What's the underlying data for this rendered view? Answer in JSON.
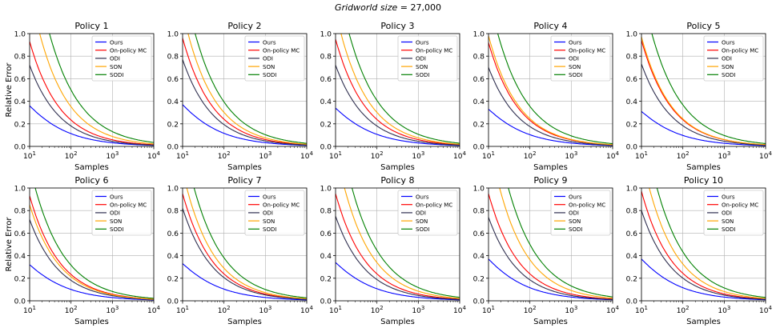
{
  "suptitle": {
    "italic": "Gridworld size",
    "rest": " = 27,000"
  },
  "common": {
    "xlabel": "Samples",
    "ylabel": "Relative Error",
    "xscale": "log",
    "xlim": [
      10,
      10000
    ],
    "ylim": [
      0,
      1.0
    ],
    "yticks": [
      "0.0",
      "0.2",
      "0.4",
      "0.6",
      "0.8",
      "1.0"
    ],
    "xtick_exponents": [
      "1",
      "2",
      "3",
      "4"
    ],
    "grid": true,
    "legend_loc": "top-right"
  },
  "series_styles": [
    {
      "name": "Ours",
      "color": "#0000ff"
    },
    {
      "name": "On-policy MC",
      "color": "#ff0000"
    },
    {
      "name": "ODI",
      "color": "#2f2f4f"
    },
    {
      "name": "SON",
      "color": "#ffa500"
    },
    {
      "name": "SODI",
      "color": "#008000"
    }
  ],
  "chart_data": [
    {
      "type": "line",
      "title": "Policy 1",
      "series": [
        {
          "name": "Ours",
          "start": 0.36,
          "k": 0.8,
          "alpha": 0.55
        },
        {
          "name": "On-policy MC",
          "start": 0.93,
          "k": 1.0,
          "alpha": 0.6
        },
        {
          "name": "ODI",
          "start": 0.72,
          "k": 1.0,
          "alpha": 0.6
        },
        {
          "name": "SON",
          "start": 1.4,
          "k": 1.0,
          "alpha": 0.6
        },
        {
          "name": "SODI",
          "start": 1.9,
          "k": 1.0,
          "alpha": 0.58
        }
      ]
    },
    {
      "type": "line",
      "title": "Policy 2",
      "series": [
        {
          "name": "Ours",
          "start": 0.37,
          "k": 0.8,
          "alpha": 0.55
        },
        {
          "name": "On-policy MC",
          "start": 0.96,
          "k": 1.0,
          "alpha": 0.6
        },
        {
          "name": "ODI",
          "start": 0.77,
          "k": 1.0,
          "alpha": 0.6
        },
        {
          "name": "SON",
          "start": 1.2,
          "k": 1.0,
          "alpha": 0.6
        },
        {
          "name": "SODI",
          "start": 1.5,
          "k": 1.0,
          "alpha": 0.58
        }
      ]
    },
    {
      "type": "line",
      "title": "Policy 3",
      "series": [
        {
          "name": "Ours",
          "start": 0.34,
          "k": 0.8,
          "alpha": 0.55
        },
        {
          "name": "On-policy MC",
          "start": 0.95,
          "k": 1.0,
          "alpha": 0.6
        },
        {
          "name": "ODI",
          "start": 0.72,
          "k": 1.0,
          "alpha": 0.6
        },
        {
          "name": "SON",
          "start": 1.2,
          "k": 1.0,
          "alpha": 0.6
        },
        {
          "name": "SODI",
          "start": 1.55,
          "k": 1.0,
          "alpha": 0.58
        }
      ]
    },
    {
      "type": "line",
      "title": "Policy 4",
      "series": [
        {
          "name": "Ours",
          "start": 0.33,
          "k": 0.8,
          "alpha": 0.55
        },
        {
          "name": "On-policy MC",
          "start": 0.92,
          "k": 1.0,
          "alpha": 0.6
        },
        {
          "name": "ODI",
          "start": 0.7,
          "k": 1.0,
          "alpha": 0.6
        },
        {
          "name": "SON",
          "start": 0.98,
          "k": 1.0,
          "alpha": 0.6
        },
        {
          "name": "SODI",
          "start": 1.35,
          "k": 1.0,
          "alpha": 0.58
        }
      ]
    },
    {
      "type": "line",
      "title": "Policy 5",
      "series": [
        {
          "name": "Ours",
          "start": 0.31,
          "k": 0.8,
          "alpha": 0.55
        },
        {
          "name": "On-policy MC",
          "start": 0.94,
          "k": 1.0,
          "alpha": 0.6
        },
        {
          "name": "ODI",
          "start": 0.73,
          "k": 1.0,
          "alpha": 0.6
        },
        {
          "name": "SON",
          "start": 0.97,
          "k": 1.0,
          "alpha": 0.6
        },
        {
          "name": "SODI",
          "start": 1.4,
          "k": 1.0,
          "alpha": 0.58
        }
      ]
    },
    {
      "type": "line",
      "title": "Policy 6",
      "series": [
        {
          "name": "Ours",
          "start": 0.32,
          "k": 0.8,
          "alpha": 0.55
        },
        {
          "name": "On-policy MC",
          "start": 0.93,
          "k": 1.0,
          "alpha": 0.6
        },
        {
          "name": "ODI",
          "start": 0.72,
          "k": 1.0,
          "alpha": 0.6
        },
        {
          "name": "SON",
          "start": 0.85,
          "k": 1.0,
          "alpha": 0.6
        },
        {
          "name": "SODI",
          "start": 1.2,
          "k": 1.0,
          "alpha": 0.58
        }
      ]
    },
    {
      "type": "line",
      "title": "Policy 7",
      "series": [
        {
          "name": "Ours",
          "start": 0.33,
          "k": 0.8,
          "alpha": 0.55
        },
        {
          "name": "On-policy MC",
          "start": 0.95,
          "k": 1.0,
          "alpha": 0.6
        },
        {
          "name": "ODI",
          "start": 0.82,
          "k": 1.0,
          "alpha": 0.6
        },
        {
          "name": "SON",
          "start": 1.15,
          "k": 1.0,
          "alpha": 0.6
        },
        {
          "name": "SODI",
          "start": 1.45,
          "k": 1.0,
          "alpha": 0.58
        }
      ]
    },
    {
      "type": "line",
      "title": "Policy 8",
      "series": [
        {
          "name": "Ours",
          "start": 0.34,
          "k": 0.8,
          "alpha": 0.55
        },
        {
          "name": "On-policy MC",
          "start": 0.95,
          "k": 1.0,
          "alpha": 0.6
        },
        {
          "name": "ODI",
          "start": 0.75,
          "k": 1.0,
          "alpha": 0.6
        },
        {
          "name": "SON",
          "start": 1.35,
          "k": 1.0,
          "alpha": 0.6
        },
        {
          "name": "SODI",
          "start": 1.7,
          "k": 1.0,
          "alpha": 0.58
        }
      ]
    },
    {
      "type": "line",
      "title": "Policy 9",
      "series": [
        {
          "name": "Ours",
          "start": 0.37,
          "k": 0.8,
          "alpha": 0.55
        },
        {
          "name": "On-policy MC",
          "start": 0.95,
          "k": 1.0,
          "alpha": 0.6
        },
        {
          "name": "ODI",
          "start": 0.74,
          "k": 1.0,
          "alpha": 0.6
        },
        {
          "name": "SON",
          "start": 1.45,
          "k": 1.0,
          "alpha": 0.6
        },
        {
          "name": "SODI",
          "start": 1.9,
          "k": 1.0,
          "alpha": 0.58
        }
      ]
    },
    {
      "type": "line",
      "title": "Policy 10",
      "series": [
        {
          "name": "Ours",
          "start": 0.37,
          "k": 0.8,
          "alpha": 0.55
        },
        {
          "name": "On-policy MC",
          "start": 0.97,
          "k": 1.0,
          "alpha": 0.6
        },
        {
          "name": "ODI",
          "start": 0.8,
          "k": 1.0,
          "alpha": 0.6
        },
        {
          "name": "SON",
          "start": 1.3,
          "k": 1.0,
          "alpha": 0.6
        },
        {
          "name": "SODI",
          "start": 1.65,
          "k": 1.0,
          "alpha": 0.58
        }
      ]
    }
  ]
}
